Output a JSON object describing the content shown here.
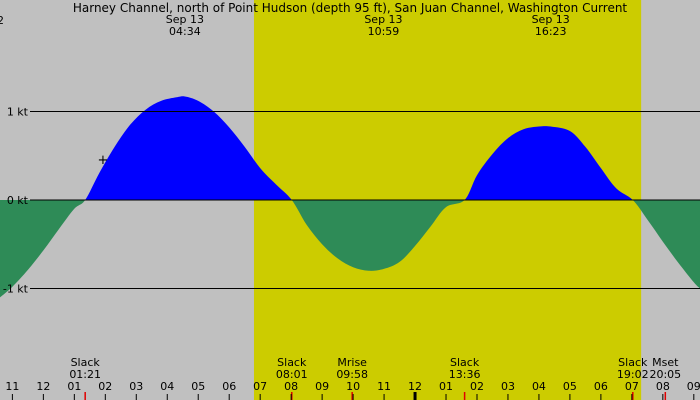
{
  "chart_data": {
    "type": "area",
    "title": "Harney Channel, north of Point Hudson (depth 95 ft), San Juan Channel, Washington Current",
    "xlabel": "",
    "ylabel": "",
    "x_unit": "hour",
    "x_range": [
      10.6,
      33.2
    ],
    "ylim": [
      -1.12,
      1.08
    ],
    "y_ticks": [
      {
        "value": 1,
        "label": "1 kt"
      },
      {
        "value": 0,
        "label": "0 kt"
      },
      {
        "value": -1,
        "label": "-1 kt"
      }
    ],
    "x_ticks": [
      {
        "hour": 11,
        "label": "11"
      },
      {
        "hour": 12,
        "label": "12"
      },
      {
        "hour": 13,
        "label": "01"
      },
      {
        "hour": 14,
        "label": "02"
      },
      {
        "hour": 15,
        "label": "03"
      },
      {
        "hour": 16,
        "label": "04"
      },
      {
        "hour": 17,
        "label": "05"
      },
      {
        "hour": 18,
        "label": "06"
      },
      {
        "hour": 19,
        "label": "07"
      },
      {
        "hour": 20,
        "label": "08"
      },
      {
        "hour": 21,
        "label": "09"
      },
      {
        "hour": 22,
        "label": "10"
      },
      {
        "hour": 23,
        "label": "11"
      },
      {
        "hour": 24,
        "label": "12"
      },
      {
        "hour": 25,
        "label": "01"
      },
      {
        "hour": 26,
        "label": "02"
      },
      {
        "hour": 27,
        "label": "03"
      },
      {
        "hour": 28,
        "label": "04"
      },
      {
        "hour": 29,
        "label": "05"
      },
      {
        "hour": 30,
        "label": "06"
      },
      {
        "hour": 31,
        "label": "07"
      },
      {
        "hour": 32,
        "label": "08"
      },
      {
        "hour": 33,
        "label": "09"
      }
    ],
    "daylight": {
      "start_hour": 18.8,
      "end_hour": 31.3
    },
    "flood_color": "#0000ff",
    "ebb_color": "#2e8b57",
    "day_color": "#cccc00",
    "night_color": "#c0c0c0",
    "series": [
      {
        "x": [
          10.6,
          11.0,
          11.5,
          12.0,
          12.5,
          13.0,
          13.35,
          13.8,
          14.3,
          14.8,
          15.3,
          15.8,
          16.3,
          16.57,
          17.0,
          17.5,
          18.0,
          18.5,
          19.0,
          19.5,
          20.02,
          20.5,
          21.0,
          21.5,
          22.0,
          22.5,
          22.98,
          23.5,
          24.0,
          24.5,
          25.0,
          25.6,
          26.0,
          26.5,
          27.0,
          27.5,
          28.0,
          28.38,
          29.0,
          29.5,
          30.0,
          30.5,
          31.03,
          31.5,
          32.0,
          32.5,
          33.0,
          33.2
        ],
        "y": [
          -1.1,
          -0.98,
          -0.79,
          -0.57,
          -0.33,
          -0.1,
          0.0,
          0.3,
          0.6,
          0.85,
          1.02,
          1.12,
          1.16,
          1.17,
          1.12,
          1.0,
          0.82,
          0.6,
          0.36,
          0.18,
          0.0,
          -0.28,
          -0.5,
          -0.66,
          -0.76,
          -0.8,
          -0.78,
          -0.7,
          -0.52,
          -0.3,
          -0.08,
          0.0,
          0.28,
          0.52,
          0.7,
          0.8,
          0.83,
          0.83,
          0.78,
          0.6,
          0.36,
          0.13,
          0.0,
          -0.22,
          -0.47,
          -0.71,
          -0.93,
          -1.0
        ]
      }
    ],
    "events": [
      {
        "label": "Slack",
        "time": "01:21",
        "hour": 13.35
      },
      {
        "label": "Slack",
        "time": "08:01",
        "hour": 20.02
      },
      {
        "label": "Mrise",
        "time": "09:58",
        "hour": 21.97
      },
      {
        "label": "Slack",
        "time": "13:36",
        "hour": 25.6
      },
      {
        "label": "Slack",
        "time": "19:02",
        "hour": 31.03
      },
      {
        "label": "Mset",
        "time": "20:05",
        "hour": 32.08
      }
    ],
    "peaks": [
      {
        "date": "Sep 13",
        "time": "04:34",
        "hour": 16.57
      },
      {
        "date": "Sep 13",
        "time": "10:59",
        "hour": 22.98
      },
      {
        "date": "Sep 13",
        "time": "16:23",
        "hour": 28.38
      }
    ],
    "left_edge_label": "2",
    "marker": "+"
  }
}
